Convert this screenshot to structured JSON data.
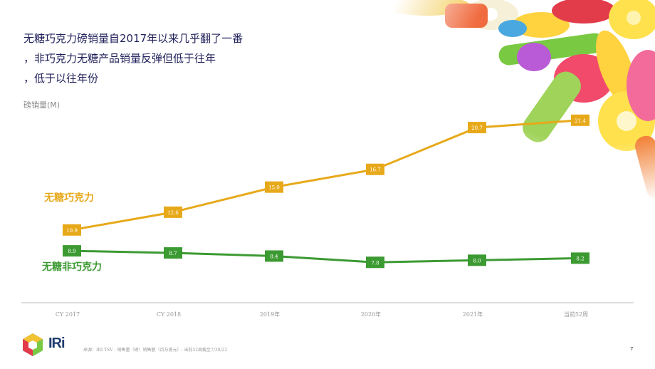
{
  "title_lines": [
    "无糖巧克力磅销量自2017年以来几乎翻了一番",
    "，非巧克力无糖产品销量反弹但低于往年",
    "，低于以往年份"
  ],
  "unit_label": "磅销量(M)",
  "footer": {
    "source": "来源：IRI TSV - 销售量（磅）销售额（百万美元）- 当前52周截至7/30/22",
    "page_number": "7",
    "logo_text": "IRi"
  },
  "colors": {
    "sugar_free_chocolate": "#e7a91a",
    "sugar_free_non_chocolate": "#3c9a32",
    "title": "#1f1f5a"
  },
  "chart_data": {
    "type": "line",
    "categories": [
      "CY 2017",
      "CY 2018",
      "2019年",
      "2020年",
      "2021年",
      "当前52周"
    ],
    "series": [
      {
        "name": "无糖巧克力",
        "values": [
          10.9,
          12.6,
          15.0,
          16.7,
          20.7,
          21.4
        ],
        "color": "#e7a91a"
      },
      {
        "name": "无糖非巧克力",
        "values": [
          8.9,
          8.7,
          8.4,
          7.8,
          8.0,
          8.2
        ],
        "color": "#3c9a32"
      }
    ],
    "ylabel": "磅销量(M)",
    "ylim": [
      5,
      25
    ],
    "grid": false,
    "legend_placement": "inline-left"
  }
}
